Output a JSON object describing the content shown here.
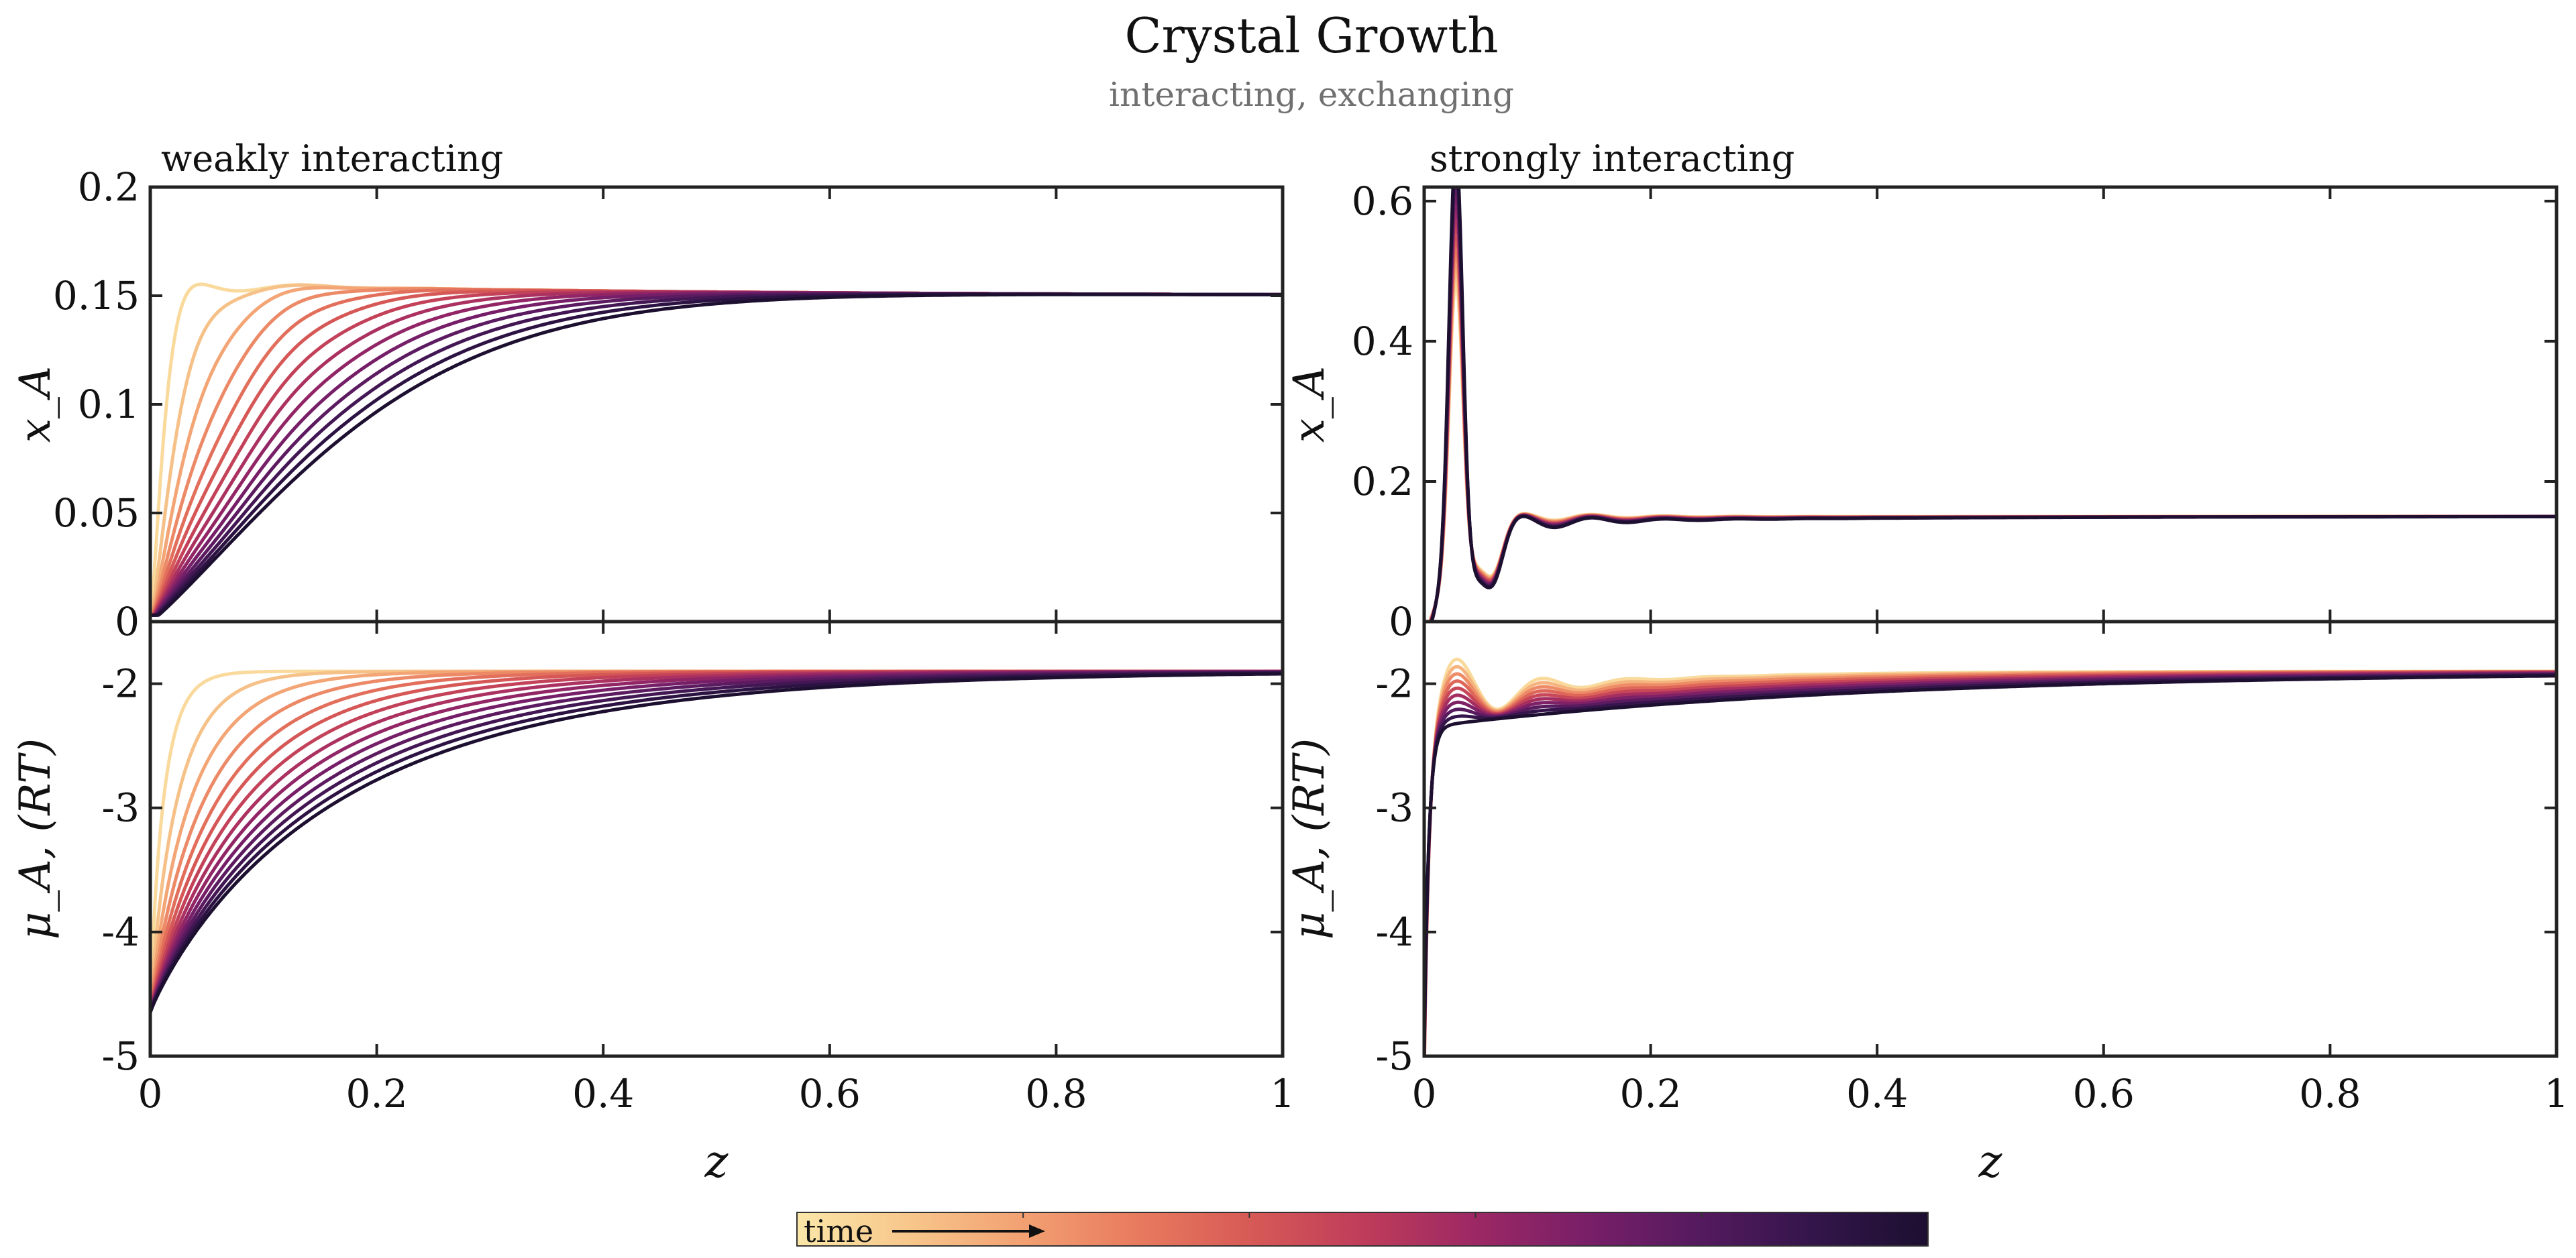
{
  "figure": {
    "title": "Crystal Growth",
    "subtitle": "interacting, exchanging",
    "colorbar_label": "time"
  },
  "colormap": [
    "#fbe7a8",
    "#f7c68b",
    "#f2a072",
    "#e87b5e",
    "#d75a56",
    "#bf3d5a",
    "#9c2864",
    "#781f68",
    "#541a5e",
    "#33154a",
    "#1c0f30"
  ],
  "chart_data": [
    {
      "type": "line",
      "title": "weakly interacting",
      "xlabel": "",
      "ylabel": "x_A",
      "xlim": [
        0,
        1
      ],
      "ylim": [
        0,
        0.2
      ],
      "xticks": [
        "0",
        "0.2",
        "0.4",
        "0.6",
        "0.8",
        "1"
      ],
      "show_xticklabels": false,
      "yticks": [
        "0",
        "0.05",
        "0.1",
        "0.15",
        "0.2"
      ],
      "grid": false,
      "model": "weak_x",
      "curve_count": 14,
      "equilibrium_value": 0.15
    },
    {
      "type": "line",
      "title": "",
      "xlabel": "z",
      "ylabel": "μ_A, (RT)",
      "xlim": [
        0,
        1
      ],
      "ylim": [
        -5,
        -1.5
      ],
      "xticks": [
        "0",
        "0.2",
        "0.4",
        "0.6",
        "0.8",
        "1"
      ],
      "show_xticklabels": true,
      "yticks": [
        "-5",
        "-4",
        "-3",
        "-2"
      ],
      "grid": false,
      "model": "weak_mu",
      "curve_count": 14,
      "equilibrium_value": -1.9
    },
    {
      "type": "line",
      "title": "strongly interacting",
      "xlabel": "",
      "ylabel": "x_A",
      "xlim": [
        0,
        1
      ],
      "ylim": [
        0,
        0.62
      ],
      "xticks": [
        "0",
        "0.2",
        "0.4",
        "0.6",
        "0.8",
        "1"
      ],
      "show_xticklabels": false,
      "yticks": [
        "0",
        "0.2",
        "0.4",
        "0.6"
      ],
      "grid": false,
      "model": "strong_x",
      "curve_count": 10,
      "equilibrium_value": 0.15
    },
    {
      "type": "line",
      "title": "",
      "xlabel": "z",
      "ylabel": "μ_A, (RT)",
      "xlim": [
        0,
        1
      ],
      "ylim": [
        -5,
        -1.5
      ],
      "xticks": [
        "0",
        "0.2",
        "0.4",
        "0.6",
        "0.8",
        "1"
      ],
      "show_xticklabels": true,
      "yticks": [
        "-5",
        "-4",
        "-3",
        "-2"
      ],
      "grid": false,
      "model": "strong_mu",
      "curve_count": 10,
      "equilibrium_value": -1.9
    }
  ]
}
